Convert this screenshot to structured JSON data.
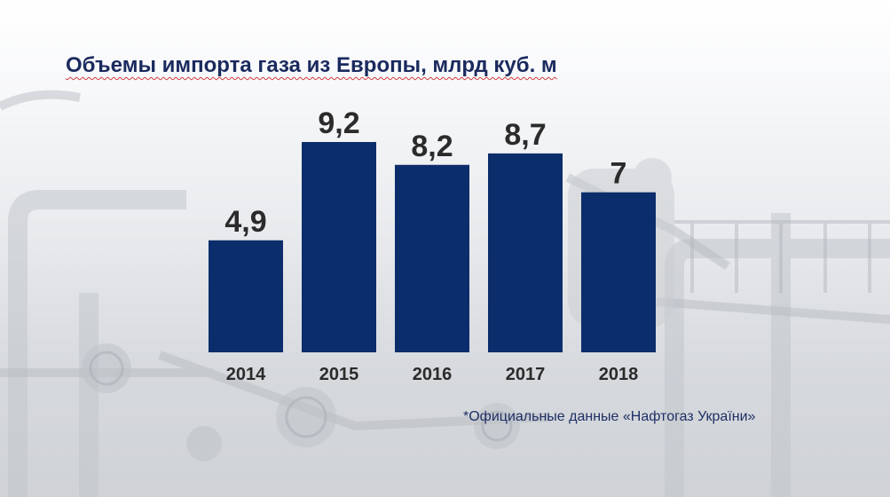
{
  "slide": {
    "title": "Объемы импорта газа из Европы, млрд куб. м",
    "source_note": "*Официальные данные «Нафтогаз України»"
  },
  "chart_data": {
    "type": "bar",
    "categories": [
      "2014",
      "2015",
      "2016",
      "2017",
      "2018"
    ],
    "values": [
      4.9,
      9.2,
      8.2,
      8.7,
      7
    ],
    "value_labels": [
      "4,9",
      "9,2",
      "8,2",
      "8,7",
      "7"
    ],
    "title": "Объемы импорта газа из Европы, млрд куб. м",
    "xlabel": "",
    "ylabel": "",
    "ylim": [
      0,
      9.2
    ],
    "grid": false,
    "bar_color": "#0c2d6b",
    "label_color": "#2b2b2b"
  }
}
